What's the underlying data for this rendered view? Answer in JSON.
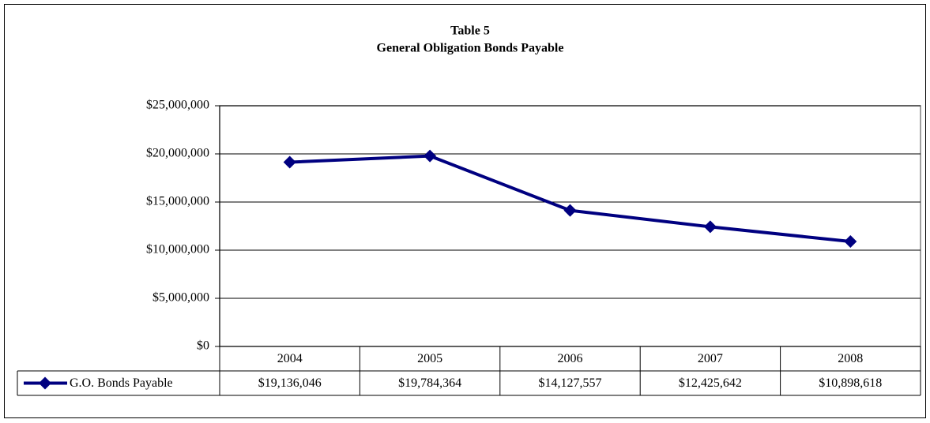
{
  "chart_data": {
    "type": "line",
    "title": "Table 5",
    "subtitle": "General Obligation Bonds Payable",
    "categories": [
      "2004",
      "2005",
      "2006",
      "2007",
      "2008"
    ],
    "series": [
      {
        "name": "G.O. Bonds Payable",
        "color": "#000080",
        "values": [
          19136046,
          19784364,
          14127557,
          12425642,
          10898618
        ],
        "value_labels": [
          "$19,136,046",
          "$19,784,364",
          "$14,127,557",
          "$12,425,642",
          "$10,898,618"
        ]
      }
    ],
    "ylim": [
      0,
      25000000
    ],
    "yticks": [
      {
        "value": 0,
        "label": "$0"
      },
      {
        "value": 5000000,
        "label": "$5,000,000"
      },
      {
        "value": 10000000,
        "label": "$10,000,000"
      },
      {
        "value": 15000000,
        "label": "$15,000,000"
      },
      {
        "value": 20000000,
        "label": "$20,000,000"
      },
      {
        "value": 25000000,
        "label": "$25,000,000"
      }
    ],
    "grid": true
  }
}
